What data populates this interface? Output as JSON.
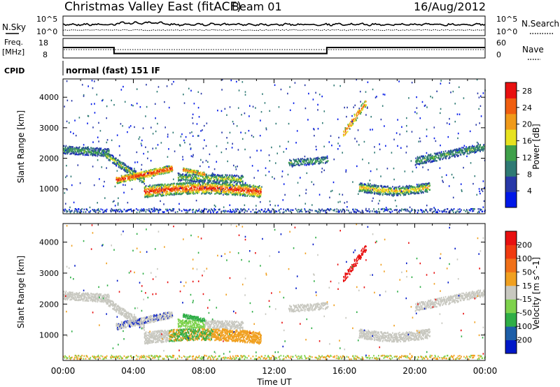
{
  "header": {
    "title": "Christmas Valley East (fitACF)",
    "beam": "Beam 01",
    "date": "16/Aug/2012"
  },
  "side_labels": {
    "nsky": "N.Sky",
    "freq": "Freq.",
    "freq_unit": "[MHz]",
    "cpid": "CPID",
    "nsearch": "N.Search",
    "nave": "Nave"
  },
  "small_axes": {
    "nsky_ticks": [
      "10^5",
      "10^0"
    ],
    "nsearch_ticks": [
      "10^5",
      "10^0"
    ],
    "freq_ticks": [
      "18",
      "8"
    ],
    "nave_ticks": [
      "60",
      "0"
    ]
  },
  "cpid_text": "normal (fast) 151 IF",
  "panels": {
    "power_ylabel": "Slant Range [km]",
    "velocity_ylabel": "Slant Range [km]",
    "power_cbar_label": "Power [dB]",
    "velocity_cbar_label": "Velocity [m s^-1]",
    "xlabel": "Time UT"
  },
  "colors": {
    "power_scale": [
      "#0018e8",
      "#2838a8",
      "#2f7a74",
      "#3fa04a",
      "#e7e21f",
      "#f09a1a",
      "#f05e10",
      "#e81010"
    ],
    "velocity_scale": [
      "#0018c8",
      "#1d5ea8",
      "#2fae46",
      "#7ed24c",
      "#c8c8c0",
      "#f0a020",
      "#f07018",
      "#f03a10",
      "#e81010"
    ]
  },
  "chart_data": [
    {
      "type": "line",
      "name": "N.Sky / N.Search",
      "x_range_hours": [
        0,
        24
      ],
      "y_scale": "log",
      "ylim": [
        1,
        100000
      ],
      "x_ticks": [
        "00:00",
        "04:00",
        "08:00",
        "12:00",
        "16:00",
        "20:00",
        "00:00"
      ]
    },
    {
      "type": "line",
      "name": "Freq / Nave",
      "freq_ylim_mhz": [
        8,
        18
      ],
      "nave_ylim": [
        0,
        60
      ],
      "freq_steps": [
        {
          "start_h": 0.0,
          "end_h": 2.9,
          "freq_mhz": 14.8
        },
        {
          "start_h": 2.9,
          "end_h": 15.0,
          "freq_mhz": 10.9
        },
        {
          "start_h": 15.0,
          "end_h": 24.0,
          "freq_mhz": 14.8
        }
      ]
    },
    {
      "type": "heatmap",
      "name": "Power",
      "xlabel": "Time UT",
      "ylabel": "Slant Range [km]",
      "y_ticks": [
        1000,
        2000,
        3000,
        4000
      ],
      "ylim": [
        180,
        4600
      ],
      "colorbar_label": "Power [dB]",
      "colorbar_ticks": [
        4,
        8,
        12,
        16,
        20,
        24,
        28
      ],
      "colorbar_range": [
        0,
        30
      ]
    },
    {
      "type": "heatmap",
      "name": "Velocity",
      "xlabel": "Time UT",
      "ylabel": "Slant Range [km]",
      "y_ticks": [
        1000,
        2000,
        3000,
        4000
      ],
      "ylim": [
        180,
        4600
      ],
      "colorbar_label": "Velocity [m s^-1]",
      "colorbar_ticks": [
        200,
        100,
        50,
        15,
        -15,
        -50,
        -100,
        -200
      ]
    }
  ]
}
